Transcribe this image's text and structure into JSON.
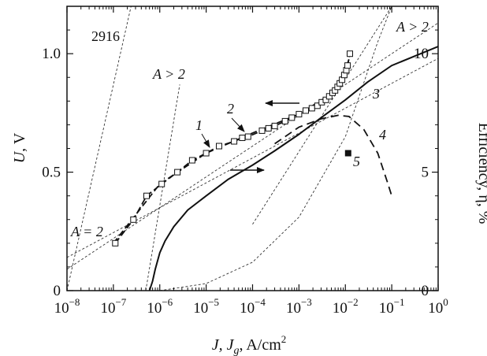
{
  "chart_data": {
    "type": "line",
    "sample_id": "2916",
    "xlabel": {
      "italic": "J, J",
      "sub": "g",
      "rest": ", A/cm",
      "sup": "2"
    },
    "ylabel_left": {
      "italic": "U",
      "rest": ", V"
    },
    "ylabel_right": "Efficiency, η, %",
    "x_scale": "log",
    "xlim": [
      1e-08,
      1
    ],
    "x_ticks": [
      {
        "base": "10",
        "exp": "−8",
        "value": 1e-08
      },
      {
        "base": "10",
        "exp": "−7",
        "value": 1e-07
      },
      {
        "base": "10",
        "exp": "−6",
        "value": 1e-06
      },
      {
        "base": "10",
        "exp": "−5",
        "value": 1e-05
      },
      {
        "base": "10",
        "exp": "−4",
        "value": 0.0001
      },
      {
        "base": "10",
        "exp": "−3",
        "value": 0.001
      },
      {
        "base": "10",
        "exp": "−2",
        "value": 0.01
      },
      {
        "base": "10",
        "exp": "−1",
        "value": 0.1
      },
      {
        "base": "10",
        "exp": "0",
        "value": 1
      }
    ],
    "ylim_left": [
      0,
      1.2
    ],
    "y_ticks_left": [
      {
        "label": "0",
        "value": 0
      },
      {
        "label": "0.5",
        "value": 0.5
      },
      {
        "label": "1.0",
        "value": 1.0
      }
    ],
    "ylim_right": [
      0,
      12
    ],
    "y_ticks_right": [
      {
        "label": "0",
        "value": 0
      },
      {
        "label": "5",
        "value": 5
      },
      {
        "label": "10",
        "value": 10
      }
    ],
    "grid": false,
    "series": [
      {
        "name": "1",
        "axis": "left",
        "style": "dashed",
        "marker": "open-square",
        "points": [
          [
            1.1e-07,
            0.2
          ],
          [
            2.7e-07,
            0.3
          ],
          [
            5.2e-07,
            0.4
          ],
          [
            1.1e-06,
            0.45
          ],
          [
            2.4e-06,
            0.5
          ],
          [
            5e-06,
            0.55
          ],
          [
            1e-05,
            0.58
          ],
          [
            1.9e-05,
            0.61
          ],
          [
            4e-05,
            0.63
          ],
          [
            6e-05,
            0.645
          ],
          [
            8e-05,
            0.65
          ],
          [
            0.00016,
            0.675
          ],
          [
            0.00022,
            0.685
          ],
          [
            0.0003,
            0.695
          ],
          [
            0.0005,
            0.715
          ],
          [
            0.0007,
            0.73
          ],
          [
            0.001,
            0.745
          ],
          [
            0.0014,
            0.76
          ],
          [
            0.0019,
            0.77
          ],
          [
            0.0025,
            0.78
          ],
          [
            0.0031,
            0.795
          ],
          [
            0.0038,
            0.805
          ],
          [
            0.0045,
            0.82
          ],
          [
            0.0053,
            0.835
          ],
          [
            0.006,
            0.845
          ],
          [
            0.0068,
            0.86
          ],
          [
            0.0076,
            0.875
          ],
          [
            0.0085,
            0.89
          ],
          [
            0.0095,
            0.91
          ],
          [
            0.0105,
            0.93
          ],
          [
            0.0112,
            0.95
          ],
          [
            0.0125,
            1.0
          ]
        ]
      },
      {
        "name": "2",
        "axis": "left",
        "style": "dashed",
        "marker": "none",
        "points": [
          [
            1e-07,
            0.2
          ],
          [
            1e-06,
            0.45
          ],
          [
            1e-05,
            0.58
          ],
          [
            0.0001,
            0.665
          ],
          [
            0.001,
            0.745
          ],
          [
            0.005,
            0.83
          ],
          [
            0.01,
            0.93
          ],
          [
            0.013,
            1.0
          ]
        ]
      },
      {
        "name": "3",
        "axis": "right",
        "style": "solid",
        "marker": "none",
        "points": [
          [
            6e-07,
            0.0
          ],
          [
            7e-07,
            0.4
          ],
          [
            8e-07,
            0.9
          ],
          [
            1e-06,
            1.6
          ],
          [
            1.3e-06,
            2.1
          ],
          [
            2e-06,
            2.7
          ],
          [
            4e-06,
            3.4
          ],
          [
            1e-05,
            4.0
          ],
          [
            3e-05,
            4.7
          ],
          [
            0.0001,
            5.3
          ],
          [
            0.0003,
            5.9
          ],
          [
            0.001,
            6.6
          ],
          [
            0.003,
            7.3
          ],
          [
            0.01,
            8.05
          ],
          [
            0.03,
            8.8
          ],
          [
            0.1,
            9.5
          ],
          [
            1.0,
            10.3
          ]
        ]
      },
      {
        "name": "4",
        "axis": "right",
        "style": "dashed",
        "marker": "none",
        "points": [
          [
            0.0003,
            6.2
          ],
          [
            0.001,
            6.9
          ],
          [
            0.003,
            7.25
          ],
          [
            0.007,
            7.4
          ],
          [
            0.012,
            7.35
          ],
          [
            0.025,
            6.8
          ],
          [
            0.05,
            5.8
          ],
          [
            0.08,
            4.6
          ],
          [
            0.1,
            4.0
          ]
        ]
      },
      {
        "name": "5",
        "axis": "right",
        "style": "marker-only",
        "marker": "filled-square",
        "points": [
          [
            0.0115,
            5.8
          ]
        ]
      }
    ],
    "reference_lines": [
      {
        "label": "A = 2 (low-current fit)",
        "axis": "left",
        "points": [
          [
            1e-08,
            0.09
          ],
          [
            1,
            1.13
          ]
        ]
      },
      {
        "label": "A = 2 (high-current fit)",
        "axis": "left",
        "points": [
          [
            1e-08,
            0.14
          ],
          [
            1,
            0.98
          ]
        ]
      },
      {
        "label": "A > 2 (steep, left)",
        "axis": "left",
        "points": [
          [
            1e-08,
            0.0
          ],
          [
            2.4e-07,
            1.2
          ]
        ]
      },
      {
        "label": "A > 2 (steep, middle)",
        "axis": "left",
        "points": [
          [
            5e-07,
            0.0
          ],
          [
            2.7e-06,
            0.87
          ]
        ]
      },
      {
        "label": "A > 2 (high-current)",
        "axis": "left",
        "points": [
          [
            0.0001,
            0.28
          ],
          [
            0.1,
            1.2
          ]
        ]
      },
      {
        "label": "diode curve (right)",
        "axis": "left",
        "points": [
          [
            1e-06,
            0.0
          ],
          [
            1e-05,
            0.03
          ],
          [
            0.0001,
            0.12
          ],
          [
            0.001,
            0.31
          ],
          [
            0.01,
            0.65
          ],
          [
            0.05,
            1.05
          ],
          [
            0.1,
            1.2
          ]
        ]
      }
    ],
    "annotations": [
      {
        "text": "2916",
        "style": "upright"
      },
      {
        "text": "A > 2",
        "style": "italic",
        "position": "top-right"
      },
      {
        "text": "A > 2",
        "style": "italic",
        "position": "upper-left"
      },
      {
        "text": "A = 2",
        "style": "italic",
        "position": "lower-left"
      },
      {
        "text": "1",
        "style": "italic"
      },
      {
        "text": "2",
        "style": "italic"
      },
      {
        "text": "3",
        "style": "italic"
      },
      {
        "text": "4",
        "style": "italic"
      },
      {
        "text": "5",
        "style": "italic"
      }
    ],
    "axis_arrows": [
      {
        "direction": "left",
        "points_to": "left-axis"
      },
      {
        "direction": "right",
        "points_to": "right-axis"
      }
    ]
  }
}
